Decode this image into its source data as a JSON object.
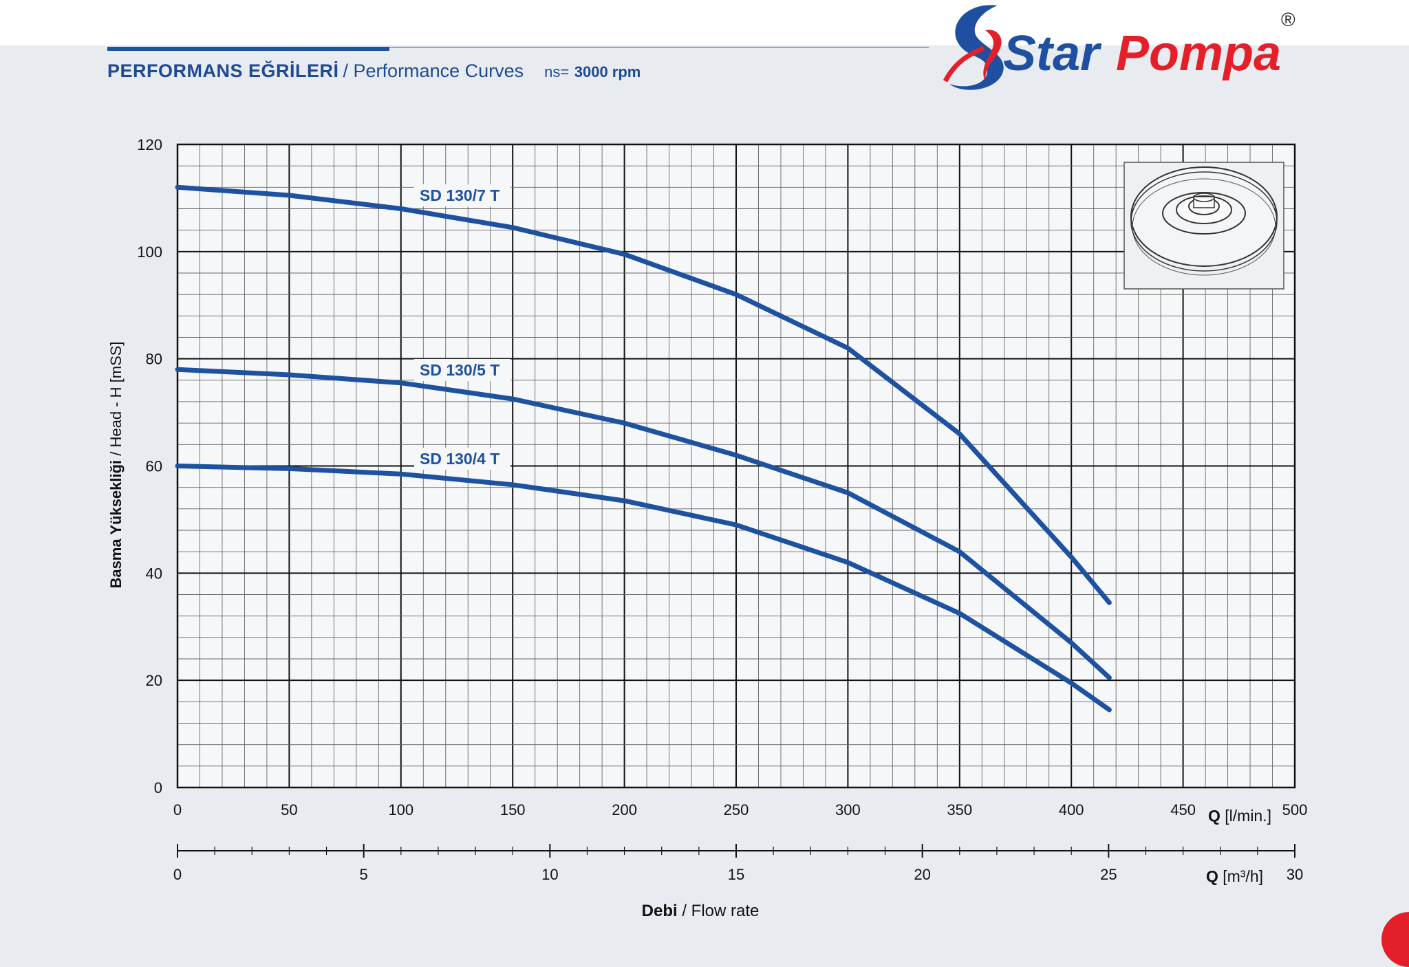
{
  "header": {
    "title_tr": "PERFORMANS EĞRİLERİ",
    "title_en": "/ Performance Curves",
    "ns_label": "ns=",
    "rpm": "3000 rpm"
  },
  "logo": {
    "text_a": "Star",
    "text_b": "Pompa",
    "registered": "®",
    "colors": {
      "blue": "#1e4fa0",
      "red": "#e3202a"
    }
  },
  "chart_data": {
    "type": "line",
    "x_unit_label": "[l/min.]",
    "x_unit_prefix": "Q",
    "secondary_unit_label": "[m³/h]",
    "secondary_unit_prefix": "Q",
    "ylabel_bold": "Basma Yüksekliği",
    "ylabel_rest": " / Head - H [mSS]",
    "xlabel_bold": "Debi",
    "xlabel_rest": " / Flow rate",
    "xlim": [
      0,
      500
    ],
    "ylim": [
      0,
      120
    ],
    "x_ticks": [
      0,
      50,
      100,
      150,
      200,
      250,
      300,
      350,
      400,
      450,
      500
    ],
    "y_ticks": [
      0,
      20,
      40,
      60,
      80,
      100,
      120
    ],
    "secondary_lim": [
      0,
      30
    ],
    "secondary_ticks": [
      0,
      5,
      10,
      15,
      20,
      25,
      30
    ],
    "grid": true,
    "line_color": "#1e52a0",
    "series": [
      {
        "name": "SD 130/7 T",
        "x": [
          0,
          50,
          100,
          150,
          200,
          250,
          300,
          350,
          400,
          417
        ],
        "y": [
          112,
          110.5,
          108,
          104.5,
          99.5,
          92,
          82,
          66,
          43,
          34.5
        ]
      },
      {
        "name": "SD 130/5 T",
        "x": [
          0,
          50,
          100,
          150,
          200,
          250,
          300,
          350,
          400,
          417
        ],
        "y": [
          78,
          77,
          75.5,
          72.5,
          68,
          62,
          55,
          44,
          27,
          20.5
        ]
      },
      {
        "name": "SD 130/4 T",
        "x": [
          0,
          50,
          100,
          150,
          200,
          250,
          300,
          350,
          400,
          417
        ],
        "y": [
          60,
          59.5,
          58.5,
          56.5,
          53.5,
          49,
          42,
          32.5,
          19.5,
          14.5
        ]
      }
    ]
  }
}
